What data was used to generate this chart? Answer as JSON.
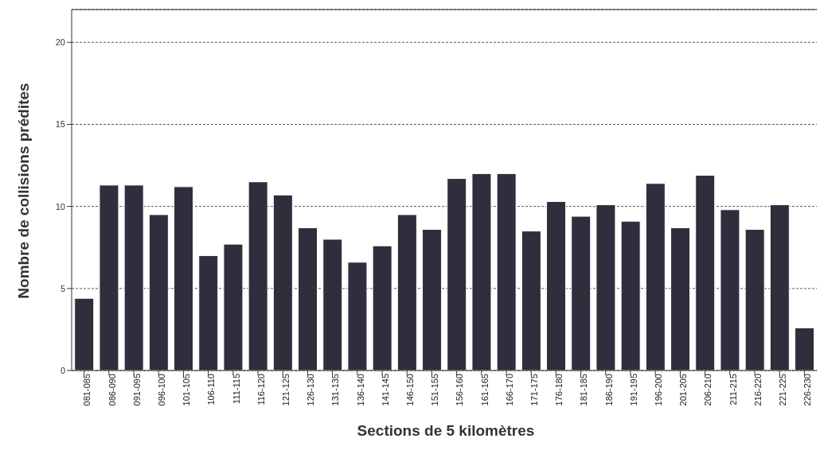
{
  "chart_data": {
    "type": "bar",
    "xlabel": "Sections de 5 kilomètres",
    "ylabel": "Nombre de collisions prédites",
    "categories": [
      "081-085",
      "086-090",
      "091-095",
      "096-100",
      "101-105",
      "106-110",
      "111-115",
      "116-120",
      "121-125",
      "126-130",
      "131-135",
      "136-140",
      "141-145",
      "146-150",
      "151-155",
      "156-160",
      "161-165",
      "166-170",
      "171-175",
      "176-180",
      "181-185",
      "186-190",
      "191-195",
      "196-200",
      "201-205",
      "206-210",
      "211-215",
      "216-220",
      "221-225",
      "226-230"
    ],
    "values": [
      4.4,
      11.3,
      11.3,
      9.5,
      11.2,
      7.0,
      7.7,
      11.5,
      10.7,
      8.7,
      8.0,
      6.6,
      7.6,
      9.5,
      8.6,
      11.7,
      12.0,
      12.0,
      8.5,
      10.3,
      9.4,
      10.1,
      9.1,
      11.4,
      8.7,
      11.9,
      9.8,
      8.6,
      10.1,
      2.6
    ],
    "color": "#2e2e3c",
    "ylim": [
      0,
      22
    ],
    "yticks": [
      0,
      5,
      10,
      15,
      20
    ],
    "grid": "y"
  }
}
